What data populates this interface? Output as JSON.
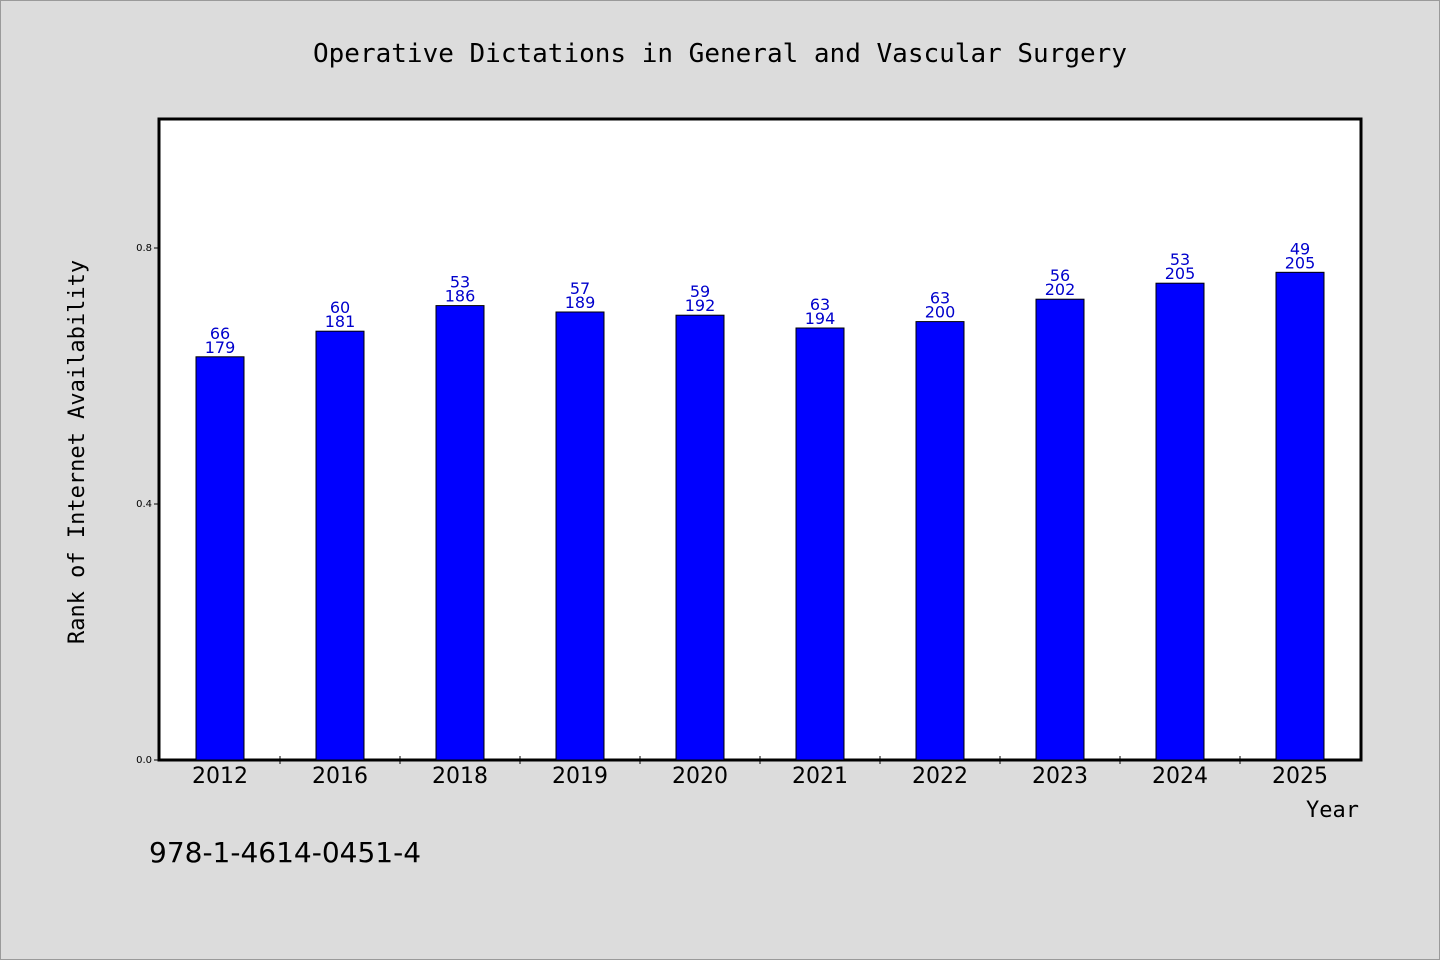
{
  "chart_data": {
    "type": "bar",
    "title": "Operative Dictations in General and Vascular Surgery",
    "xlabel": "Year",
    "ylabel": "Rank of Internet Availability",
    "categories": [
      "2012",
      "2016",
      "2018",
      "2019",
      "2020",
      "2021",
      "2022",
      "2023",
      "2024",
      "2025"
    ],
    "values": [
      0.63,
      0.67,
      0.71,
      0.7,
      0.695,
      0.675,
      0.685,
      0.72,
      0.745,
      0.762
    ],
    "annotations_top": [
      "66",
      "60",
      "53",
      "57",
      "59",
      "63",
      "63",
      "56",
      "53",
      "49"
    ],
    "annotations_bottom": [
      "179",
      "181",
      "186",
      "189",
      "192",
      "194",
      "200",
      "202",
      "205",
      "205"
    ],
    "ylim": [
      0.0,
      1.0
    ],
    "yticks": [
      0.0,
      0.4,
      0.8
    ],
    "ytick_labels": [
      "0.0",
      "0.4",
      "0.8"
    ],
    "bar_color": "#0000ff",
    "label_color": "#0000cc",
    "grid": false
  },
  "footer": {
    "isbn": "978-1-4614-0451-4"
  }
}
